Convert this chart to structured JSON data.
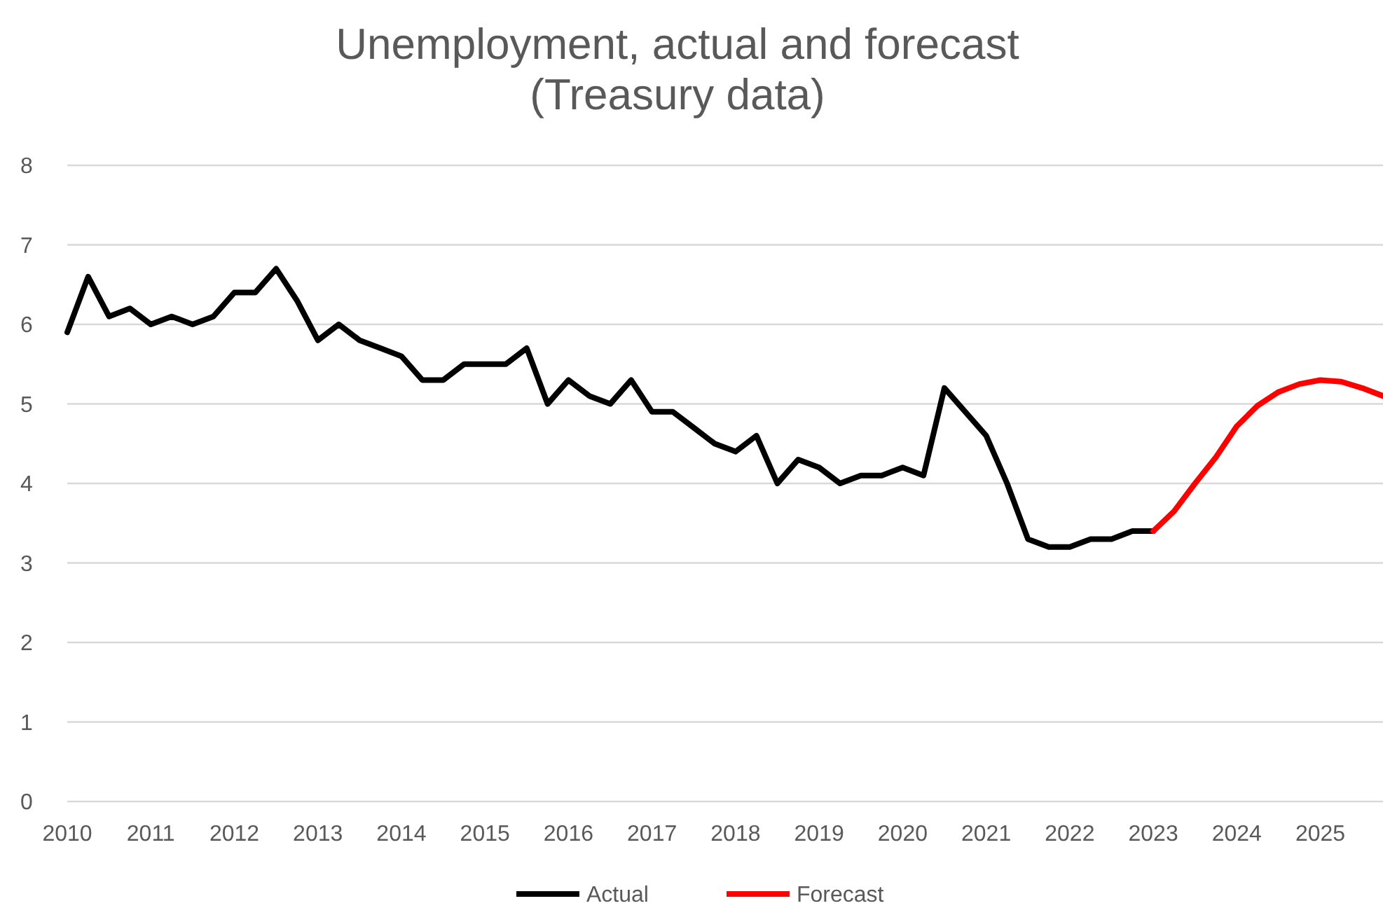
{
  "chart_data": {
    "type": "line",
    "title": "Unemployment, actual and forecast (Treasury data)",
    "xlim": [
      2010,
      2025.75
    ],
    "xticks": [
      2010,
      2011,
      2012,
      2013,
      2014,
      2015,
      2016,
      2017,
      2018,
      2019,
      2020,
      2021,
      2022,
      2023,
      2024,
      2025
    ],
    "ylim": [
      0,
      8
    ],
    "yticks": [
      0,
      1,
      2,
      3,
      4,
      5,
      6,
      7,
      8
    ],
    "grid": "y",
    "legend": "bottom",
    "marker": "none",
    "line_style": "solid",
    "series": [
      {
        "name": "Actual",
        "color": "#000000",
        "x": [
          2010,
          2010.25,
          2010.5,
          2010.75,
          2011,
          2011.25,
          2011.5,
          2011.75,
          2012,
          2012.25,
          2012.5,
          2012.75,
          2013,
          2013.25,
          2013.5,
          2013.75,
          2014,
          2014.25,
          2014.5,
          2014.75,
          2015,
          2015.25,
          2015.5,
          2015.75,
          2016,
          2016.25,
          2016.5,
          2016.75,
          2017,
          2017.25,
          2017.5,
          2017.75,
          2018,
          2018.25,
          2018.5,
          2018.75,
          2019,
          2019.25,
          2019.5,
          2019.75,
          2020,
          2020.25,
          2020.5,
          2020.75,
          2021,
          2021.25,
          2021.5,
          2021.75,
          2022,
          2022.25,
          2022.5,
          2022.75,
          2023
        ],
        "values": [
          5.9,
          6.6,
          6.1,
          6.2,
          6.0,
          6.1,
          6.0,
          6.1,
          6.4,
          6.4,
          6.7,
          6.3,
          5.8,
          6.0,
          5.8,
          5.7,
          5.6,
          5.3,
          5.3,
          5.5,
          5.5,
          5.5,
          5.7,
          5.0,
          5.3,
          5.1,
          5.0,
          5.3,
          4.9,
          4.9,
          4.7,
          4.5,
          4.4,
          4.6,
          4.0,
          4.3,
          4.2,
          4.0,
          4.1,
          4.1,
          4.2,
          4.1,
          5.2,
          4.9,
          4.6,
          4.0,
          3.3,
          3.2,
          3.2,
          3.3,
          3.3,
          3.4,
          3.4
        ]
      },
      {
        "name": "Forecast",
        "color": "#ff0000",
        "x": [
          2023,
          2023.25,
          2023.5,
          2023.75,
          2024,
          2024.25,
          2024.5,
          2024.75,
          2025,
          2025.25,
          2025.5,
          2025.75
        ],
        "values": [
          3.4,
          3.65,
          4.0,
          4.33,
          4.72,
          4.98,
          5.15,
          5.25,
          5.3,
          5.28,
          5.2,
          5.1
        ]
      }
    ]
  }
}
